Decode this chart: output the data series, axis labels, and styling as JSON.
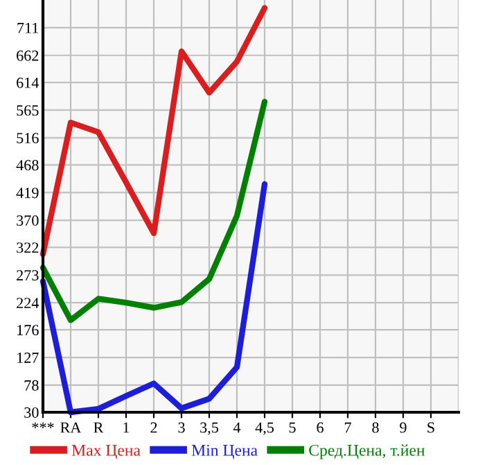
{
  "chart_data": {
    "type": "line",
    "categories": [
      "***",
      "RA",
      "R",
      "1",
      "2",
      "3",
      "3,5",
      "4",
      "4,5",
      "5",
      "6",
      "7",
      "8",
      "9",
      "S"
    ],
    "series": [
      {
        "name": "Max Цена",
        "color": "#d81e1e",
        "values": [
          310,
          543,
          526,
          437,
          347,
          669,
          596,
          651,
          746,
          null,
          null,
          null,
          null,
          null,
          null
        ]
      },
      {
        "name": "Min Цена",
        "color": "#1e1ed8",
        "values": [
          262,
          30,
          36,
          59,
          81,
          37,
          54,
          110,
          434,
          null,
          null,
          null,
          null,
          null,
          null
        ]
      },
      {
        "name": "Сред.Цена, т.йен",
        "color": "#008000",
        "values": [
          286,
          193,
          231,
          224,
          215,
          225,
          266,
          378,
          580,
          null,
          null,
          null,
          null,
          null,
          null
        ]
      }
    ],
    "ylim": [
      30,
      760
    ],
    "yticks": [
      30,
      78,
      127,
      176,
      224,
      273,
      322,
      370,
      419,
      468,
      516,
      565,
      614,
      662,
      711
    ],
    "grid": true,
    "legend": "bottom",
    "marker": "none",
    "line_style": "solid"
  }
}
